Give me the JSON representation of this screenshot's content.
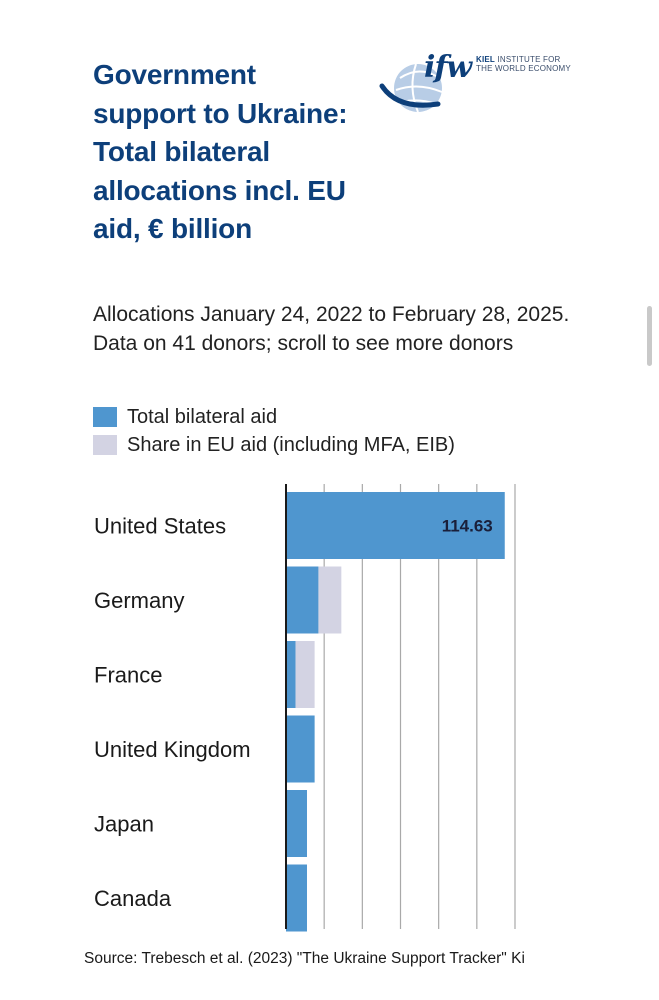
{
  "header": {
    "title": "Government support to Ukraine: Total bilateral allocations incl. EU aid, € billion",
    "logo": {
      "mark": "ifw",
      "line1_bold": "KIEL",
      "line1": "INSTITUTE FOR",
      "line2": "THE WORLD ECONOMY",
      "icon": "globe-swoosh-icon"
    },
    "subtitle": "Allocations January 24, 2022 to February 28, 2025. Data on 41 donors; scroll to see more donors"
  },
  "colors": {
    "title": "#0d3f7a",
    "bilateral": "#4f96cf",
    "eu_share": "#d3d3e3",
    "grid": "#a9a9a9",
    "axis": "#1a1a1a"
  },
  "chart_data": {
    "type": "bar",
    "orientation": "horizontal",
    "stacked": true,
    "title": "Government support to Ukraine: Total bilateral allocations incl. EU aid, € billion",
    "xlim": [
      0,
      120
    ],
    "grid": true,
    "legend_position": "top-left",
    "categories": [
      "United States",
      "Germany",
      "France",
      "United Kingdom",
      "Japan",
      "Canada"
    ],
    "series": [
      {
        "name": "Total bilateral aid",
        "values": [
          114.63,
          17.0,
          5.0,
          15.0,
          11.0,
          11.0
        ]
      },
      {
        "name": "Share in EU aid (including MFA, EIB)",
        "values": [
          0,
          12.0,
          10.0,
          0,
          0,
          0
        ]
      }
    ],
    "data_labels": [
      "114.63",
      "",
      "",
      "",
      "",
      ""
    ]
  },
  "footer": {
    "source": "Source: Trebesch et al. (2023) \"The Ukraine Support Tracker\" Ki"
  }
}
